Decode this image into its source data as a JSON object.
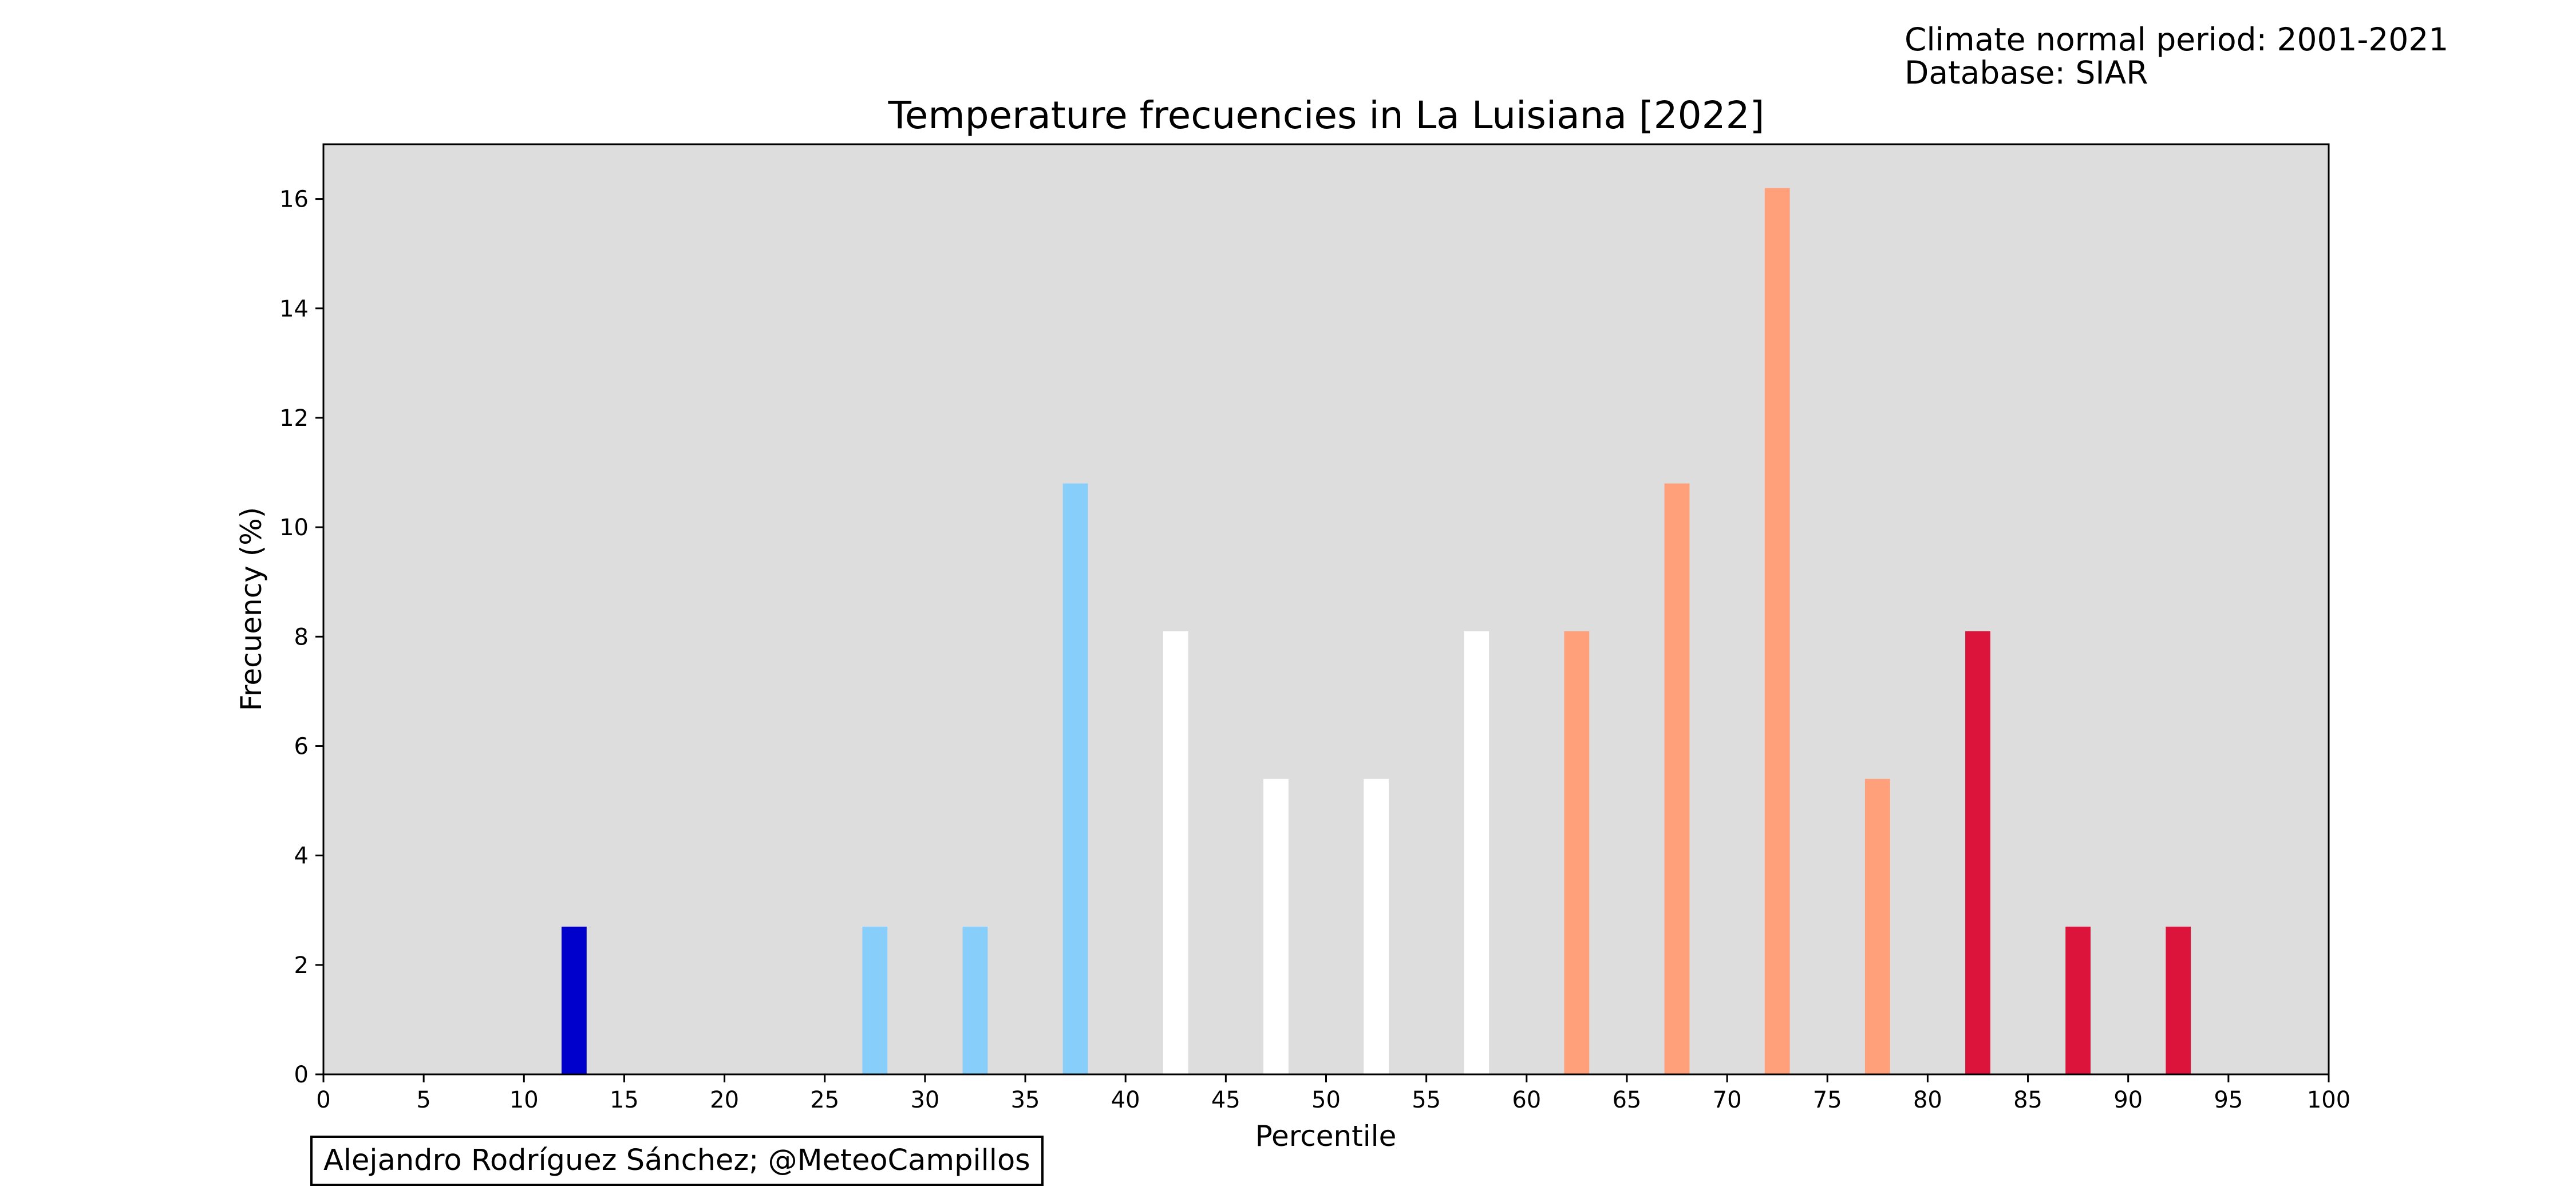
{
  "meta": {
    "normal_period": "Climate normal period: 2001-2021",
    "database": "Database: SIAR"
  },
  "credit": "Alejandro Rodríguez Sánchez; @MeteoCampillos",
  "chart_data": {
    "type": "bar",
    "title": "Temperature frecuencies in La Luisiana [2022]",
    "xlabel": "Percentile",
    "ylabel": "Frecuency (%)",
    "xlim": [
      0,
      100
    ],
    "ylim": [
      0,
      17
    ],
    "xticks": [
      0,
      5,
      10,
      15,
      20,
      25,
      30,
      35,
      40,
      45,
      50,
      55,
      60,
      65,
      70,
      75,
      80,
      85,
      90,
      95,
      100
    ],
    "yticks": [
      0,
      2,
      4,
      6,
      8,
      10,
      12,
      14,
      16
    ],
    "grid": false,
    "background": "#dddddd",
    "bar_width": 1.25,
    "bars": [
      {
        "x": 12.5,
        "value": 2.7,
        "color": "#0000cd"
      },
      {
        "x": 27.5,
        "value": 2.7,
        "color": "#87cefa"
      },
      {
        "x": 32.5,
        "value": 2.7,
        "color": "#87cefa"
      },
      {
        "x": 37.5,
        "value": 10.8,
        "color": "#87cefa"
      },
      {
        "x": 42.5,
        "value": 8.1,
        "color": "#ffffff"
      },
      {
        "x": 47.5,
        "value": 5.4,
        "color": "#ffffff"
      },
      {
        "x": 52.5,
        "value": 5.4,
        "color": "#ffffff"
      },
      {
        "x": 57.5,
        "value": 8.1,
        "color": "#ffffff"
      },
      {
        "x": 62.5,
        "value": 8.1,
        "color": "#ffa07a"
      },
      {
        "x": 67.5,
        "value": 10.8,
        "color": "#ffa07a"
      },
      {
        "x": 72.5,
        "value": 16.2,
        "color": "#ffa07a"
      },
      {
        "x": 77.5,
        "value": 5.4,
        "color": "#ffa07a"
      },
      {
        "x": 82.5,
        "value": 8.1,
        "color": "#dc143c"
      },
      {
        "x": 87.5,
        "value": 2.7,
        "color": "#dc143c"
      },
      {
        "x": 92.5,
        "value": 2.7,
        "color": "#dc143c"
      }
    ]
  }
}
